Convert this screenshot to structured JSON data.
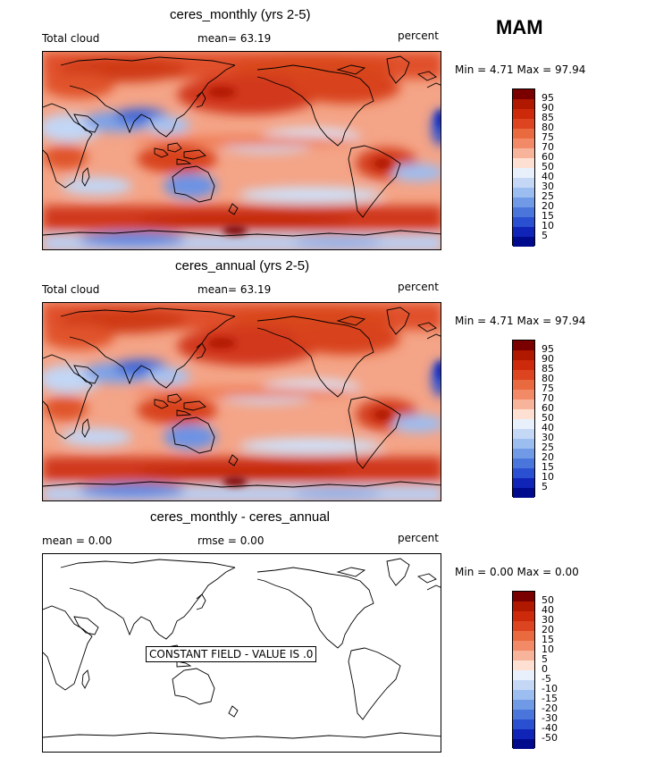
{
  "season": "MAM",
  "panels": [
    {
      "title": "ceres_monthly (yrs 2-5)",
      "left_label": "Total cloud",
      "mid_label": "mean=  63.19",
      "units": "percent",
      "minmax": "Min =   4.71  Max =  97.94",
      "levels": [
        "95",
        "90",
        "85",
        "80",
        "75",
        "70",
        "60",
        "50",
        "40",
        "30",
        "25",
        "20",
        "15",
        "10",
        "5"
      ]
    },
    {
      "title": "ceres_annual (yrs 2-5)",
      "left_label": "Total cloud",
      "mid_label": "mean=  63.19",
      "units": "percent",
      "minmax": "Min =   4.71  Max =  97.94",
      "levels": [
        "95",
        "90",
        "85",
        "80",
        "75",
        "70",
        "60",
        "50",
        "40",
        "30",
        "25",
        "20",
        "15",
        "10",
        "5"
      ]
    },
    {
      "title": "ceres_monthly - ceres_annual",
      "left_label": "mean =    0.00",
      "mid_label": "rmse =    0.00",
      "units": "percent",
      "minmax": "Min =   0.00  Max =    0.00",
      "levels": [
        "50",
        "40",
        "30",
        "20",
        "15",
        "10",
        "5",
        "0",
        "-5",
        "-10",
        "-15",
        "-20",
        "-30",
        "-40",
        "-50"
      ],
      "constant_note": "CONSTANT FIELD - VALUE IS .0"
    }
  ],
  "colorbar_colors": [
    "#7a0000",
    "#b01800",
    "#cc2a0a",
    "#dd4420",
    "#ea6a40",
    "#f28a68",
    "#f8b49a",
    "#fde0d2",
    "#e8f0fb",
    "#c4d8f6",
    "#9cbdf0",
    "#7099e6",
    "#4a76dc",
    "#2a4fd0",
    "#1024b8",
    "#000a8c"
  ]
}
